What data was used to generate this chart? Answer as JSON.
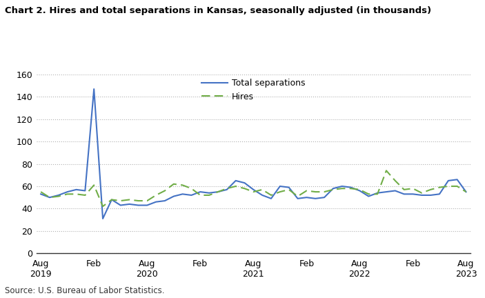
{
  "title": "Chart 2. Hires and total separations in Kansas, seasonally adjusted (in thousands)",
  "source": "Source: U.S. Bureau of Labor Statistics.",
  "total_separations": [
    53,
    50,
    52,
    55,
    57,
    56,
    147,
    31,
    48,
    43,
    44,
    43,
    43,
    46,
    47,
    51,
    53,
    52,
    55,
    54,
    55,
    57,
    65,
    63,
    57,
    52,
    49,
    60,
    59,
    49,
    50,
    49,
    50,
    58,
    60,
    59,
    56,
    51,
    54,
    55,
    56,
    53,
    53,
    52,
    52,
    53,
    65,
    66,
    55
  ],
  "hires": [
    55,
    50,
    51,
    53,
    53,
    52,
    61,
    42,
    48,
    47,
    48,
    47,
    47,
    52,
    56,
    62,
    61,
    58,
    52,
    52,
    55,
    58,
    60,
    58,
    55,
    57,
    52,
    55,
    57,
    51,
    56,
    55,
    55,
    57,
    58,
    58,
    57,
    53,
    53,
    74,
    65,
    57,
    58,
    54,
    57,
    59,
    60,
    60,
    55
  ],
  "ylim": [
    0,
    160
  ],
  "yticks": [
    0,
    20,
    40,
    60,
    80,
    100,
    120,
    140,
    160
  ],
  "x_tick_pos": [
    0,
    6,
    12,
    18,
    24,
    30,
    36,
    42,
    48
  ],
  "x_tick_labels": [
    "Aug\n2019",
    "Feb",
    "Aug\n2020",
    "Feb",
    "Aug\n2021",
    "Feb",
    "Aug\n2022",
    "Feb",
    "Aug\n2023"
  ],
  "total_sep_color": "#4472C4",
  "hires_color": "#70AD47",
  "background_color": "#FFFFFF",
  "grid_color": "#B0B0B0",
  "legend_total_sep": "Total separations",
  "legend_hires": "Hires"
}
